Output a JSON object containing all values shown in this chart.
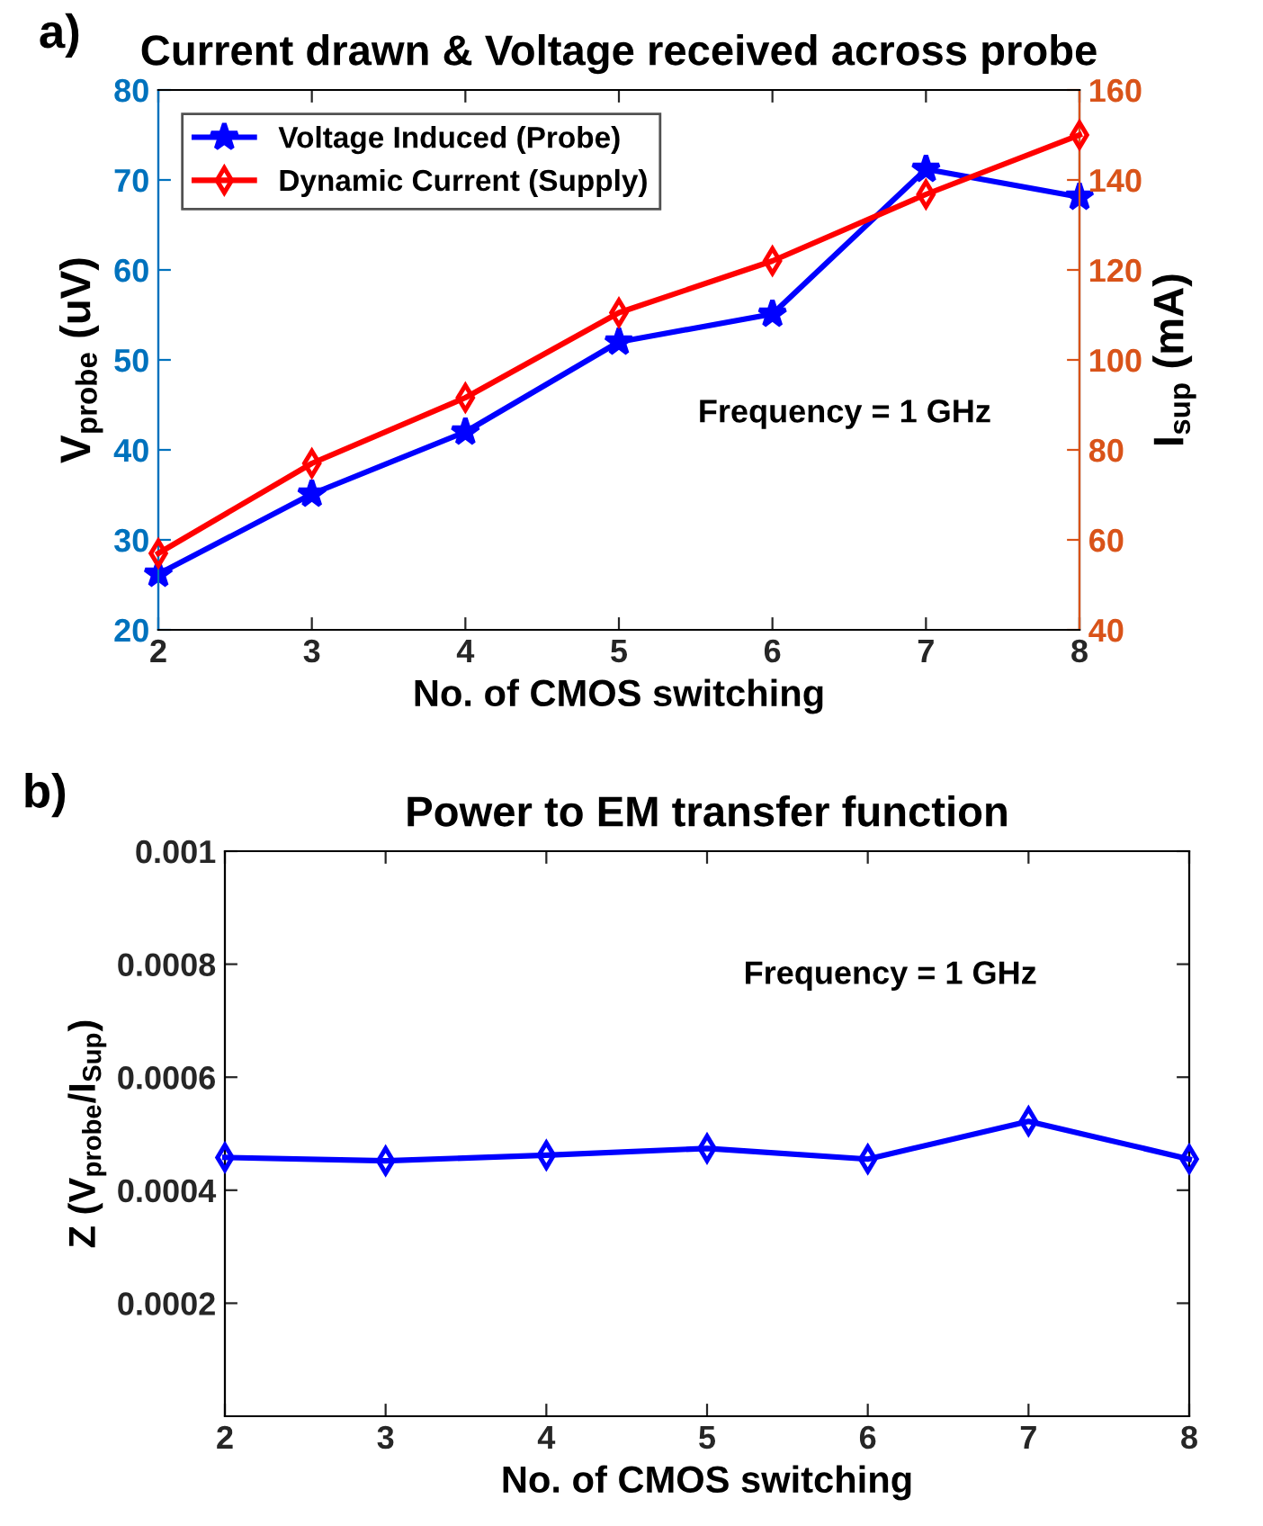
{
  "chart_data": [
    {
      "type": "line",
      "title": "Current drawn & Voltage received across probe",
      "xlabel": "No. of CMOS switching",
      "ylabel": "V$_{probe}$ (uV)",
      "y2label": "I$_{sup}$ (mA)",
      "x": [
        2,
        3,
        4,
        5,
        6,
        7,
        8
      ],
      "series": [
        {
          "name": "Voltage Induced (Probe)",
          "color": "#0000ff",
          "marker": "star",
          "values": [
            26.2,
            35.1,
            42.0,
            52.0,
            55.1,
            71.2,
            68.1
          ]
        },
        {
          "name": "Dynamic Current (Supply)",
          "color": "#ff0000",
          "marker": "diamond",
          "axis": "y2",
          "values": [
            57,
            77,
            91.6,
            110.5,
            122,
            136.8,
            150
          ]
        }
      ],
      "xlim": [
        2,
        8
      ],
      "xticks": [
        2,
        3,
        4,
        5,
        6,
        7,
        8
      ],
      "ylim": [
        20,
        80
      ],
      "yticks": [
        20,
        30,
        40,
        50,
        60,
        70,
        80
      ],
      "y2lim": [
        40,
        160
      ],
      "y2ticks": [
        40,
        60,
        80,
        100,
        120,
        140,
        160
      ],
      "legend": "top left",
      "annotations": [
        "a)",
        "Frequency = 1 GHz"
      ]
    },
    {
      "type": "line",
      "title": "Power to EM transfer function",
      "xlabel": "No. of CMOS switching",
      "ylabel": "Z (V$_{probe}$/I$_{Sup}$)",
      "x": [
        2,
        3,
        4,
        5,
        6,
        7,
        8
      ],
      "series": [
        {
          "color": "#0000ff",
          "marker": "diamond",
          "values": [
            0.000458,
            0.000452,
            0.000462,
            0.000474,
            0.000455,
            0.000522,
            0.000455
          ]
        }
      ],
      "xlim": [
        2,
        8
      ],
      "xticks": [
        2,
        3,
        4,
        5,
        6,
        7,
        8
      ],
      "ylim": [
        0,
        0.001
      ],
      "yticks": [
        {
          "value": 0.0002,
          "label": "0.0002"
        },
        {
          "value": 0.0004,
          "label": "0.0004"
        },
        {
          "value": 0.0006,
          "label": "0.0006"
        },
        {
          "value": 0.0008,
          "label": "0.0008"
        },
        {
          "value": 0.001,
          "label": "0.001"
        }
      ],
      "legend": false,
      "annotations": [
        "b)",
        "Frequency = 1 GHz"
      ]
    }
  ]
}
